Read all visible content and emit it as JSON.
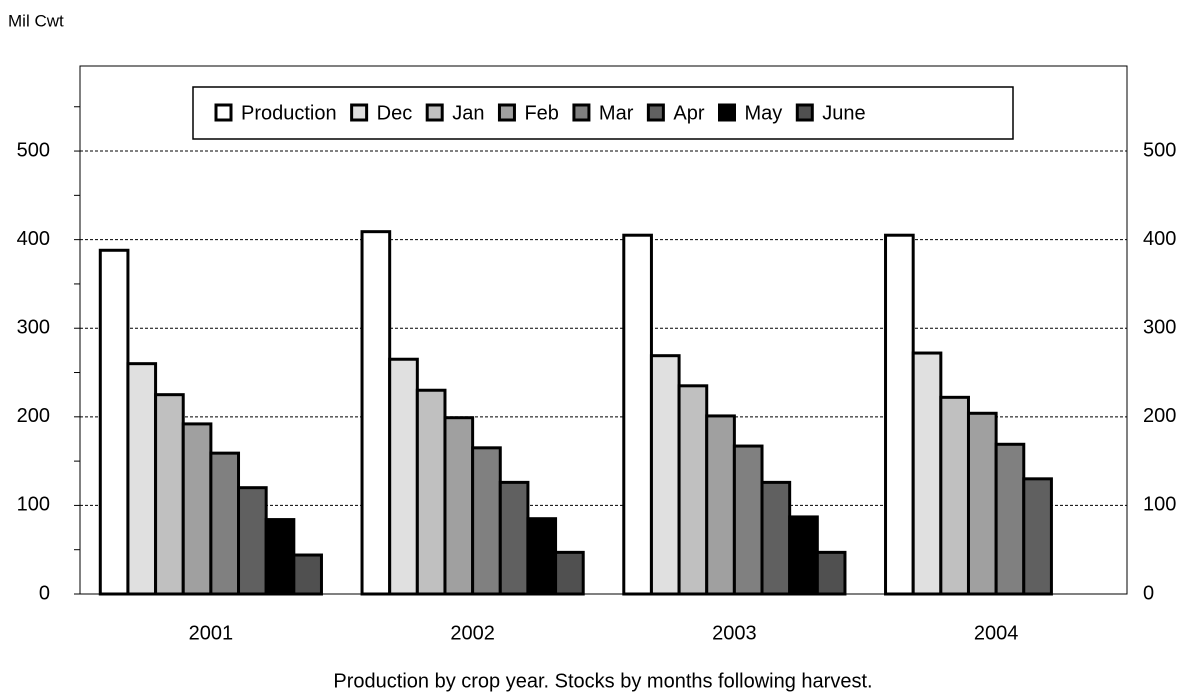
{
  "chart_data": {
    "type": "bar",
    "y_label": "Mil Cwt",
    "x_label": "Production by crop year.  Stocks by months following harvest.",
    "categories": [
      "2001",
      "2002",
      "2003",
      "2004"
    ],
    "series": [
      {
        "name": "Production",
        "color": "#ffffff",
        "values": [
          388,
          409,
          405,
          405
        ]
      },
      {
        "name": "Dec",
        "color": "#e0e0e0",
        "values": [
          260,
          265,
          269,
          272
        ]
      },
      {
        "name": "Jan",
        "color": "#c0c0c0",
        "values": [
          225,
          230,
          235,
          222
        ]
      },
      {
        "name": "Feb",
        "color": "#a0a0a0",
        "values": [
          192,
          199,
          201,
          204
        ]
      },
      {
        "name": "Mar",
        "color": "#808080",
        "values": [
          159,
          165,
          167,
          169
        ]
      },
      {
        "name": "Apr",
        "color": "#606060",
        "values": [
          120,
          126,
          126,
          130
        ]
      },
      {
        "name": "May",
        "color": "#000000",
        "values": [
          84,
          85,
          87,
          null
        ]
      },
      {
        "name": "June",
        "color": "#505050",
        "values": [
          44,
          47,
          47,
          null
        ]
      }
    ],
    "ylim": [
      0,
      596
    ],
    "yticks": [
      0,
      100,
      200,
      300,
      400,
      500
    ],
    "yminor_ticks": [
      50,
      150,
      250,
      350,
      450,
      550
    ],
    "grid": true
  }
}
